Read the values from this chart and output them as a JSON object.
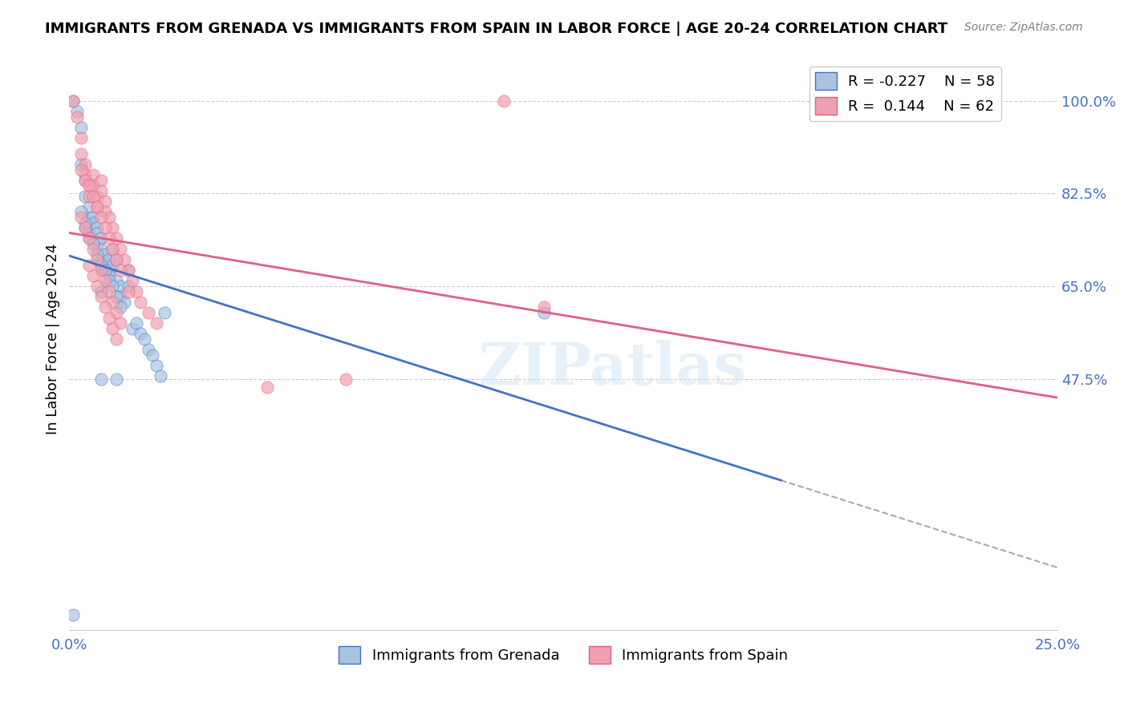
{
  "title": "IMMIGRANTS FROM GRENADA VS IMMIGRANTS FROM SPAIN IN LABOR FORCE | AGE 20-24 CORRELATION CHART",
  "source": "Source: ZipAtlas.com",
  "xlabel_bottom": "Immigrants from Grenada",
  "xlabel_top": "Immigrants from Spain",
  "ylabel": "In Labor Force | Age 20-24",
  "x_min": 0.0,
  "x_max": 0.25,
  "y_min": 0.0,
  "y_max": 1.1,
  "yticks": [
    0.475,
    0.65,
    0.825,
    1.0
  ],
  "ytick_labels": [
    "47.5%",
    "65.0%",
    "82.5%",
    "100.0%"
  ],
  "xticks": [
    0.0,
    0.05,
    0.1,
    0.15,
    0.2,
    0.25
  ],
  "xtick_labels": [
    "0.0%",
    "",
    "",
    "",
    "",
    "25.0%"
  ],
  "legend_R_grenada": "-0.227",
  "legend_N_grenada": "58",
  "legend_R_spain": "0.144",
  "legend_N_spain": "62",
  "color_grenada": "#a8c4e0",
  "color_spain": "#f0a0b0",
  "color_trend_grenada": "#4472c4",
  "color_trend_spain": "#e06080",
  "watermark": "ZIPatlas",
  "grenada_x": [
    0.001,
    0.002,
    0.003,
    0.003,
    0.004,
    0.004,
    0.005,
    0.005,
    0.005,
    0.006,
    0.006,
    0.007,
    0.007,
    0.007,
    0.008,
    0.008,
    0.008,
    0.009,
    0.009,
    0.009,
    0.01,
    0.01,
    0.01,
    0.011,
    0.011,
    0.012,
    0.012,
    0.013,
    0.013,
    0.014,
    0.015,
    0.015,
    0.016,
    0.017,
    0.018,
    0.019,
    0.02,
    0.021,
    0.022,
    0.023,
    0.004,
    0.005,
    0.006,
    0.007,
    0.008,
    0.009,
    0.01,
    0.011,
    0.012,
    0.013,
    0.003,
    0.004,
    0.008,
    0.012,
    0.12,
    0.008,
    0.001,
    0.024
  ],
  "grenada_y": [
    1.0,
    0.98,
    0.95,
    0.88,
    0.85,
    0.82,
    0.78,
    0.8,
    0.75,
    0.78,
    0.77,
    0.76,
    0.75,
    0.73,
    0.74,
    0.72,
    0.7,
    0.71,
    0.69,
    0.68,
    0.7,
    0.68,
    0.67,
    0.72,
    0.69,
    0.7,
    0.66,
    0.65,
    0.63,
    0.62,
    0.68,
    0.65,
    0.57,
    0.58,
    0.56,
    0.55,
    0.53,
    0.52,
    0.5,
    0.48,
    0.76,
    0.74,
    0.73,
    0.71,
    0.69,
    0.68,
    0.66,
    0.65,
    0.63,
    0.61,
    0.79,
    0.77,
    0.475,
    0.475,
    0.6,
    0.64,
    0.03,
    0.6
  ],
  "spain_x": [
    0.001,
    0.002,
    0.003,
    0.003,
    0.004,
    0.004,
    0.005,
    0.005,
    0.006,
    0.006,
    0.007,
    0.007,
    0.008,
    0.008,
    0.009,
    0.009,
    0.01,
    0.011,
    0.012,
    0.013,
    0.014,
    0.015,
    0.016,
    0.017,
    0.018,
    0.02,
    0.022,
    0.003,
    0.004,
    0.005,
    0.006,
    0.007,
    0.008,
    0.009,
    0.01,
    0.011,
    0.012,
    0.013,
    0.015,
    0.003,
    0.004,
    0.005,
    0.006,
    0.007,
    0.008,
    0.009,
    0.01,
    0.011,
    0.012,
    0.013,
    0.12,
    0.07,
    0.05,
    0.11,
    0.005,
    0.006,
    0.007,
    0.008,
    0.009,
    0.01,
    0.011,
    0.012
  ],
  "spain_y": [
    1.0,
    0.97,
    0.93,
    0.9,
    0.88,
    0.86,
    0.84,
    0.82,
    0.86,
    0.84,
    0.82,
    0.8,
    0.85,
    0.83,
    0.81,
    0.79,
    0.78,
    0.76,
    0.74,
    0.72,
    0.7,
    0.68,
    0.66,
    0.64,
    0.62,
    0.6,
    0.58,
    0.87,
    0.85,
    0.84,
    0.82,
    0.8,
    0.78,
    0.76,
    0.74,
    0.72,
    0.7,
    0.68,
    0.64,
    0.78,
    0.76,
    0.74,
    0.72,
    0.7,
    0.68,
    0.66,
    0.64,
    0.62,
    0.6,
    0.58,
    0.61,
    0.475,
    0.46,
    1.0,
    0.69,
    0.67,
    0.65,
    0.63,
    0.61,
    0.59,
    0.57,
    0.55
  ]
}
